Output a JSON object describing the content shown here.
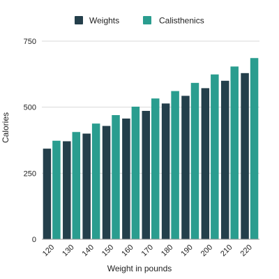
{
  "chart_data": {
    "type": "bar",
    "title": "",
    "xlabel": "Weight in pounds",
    "ylabel": "Calories",
    "categories": [
      "120",
      "130",
      "140",
      "150",
      "160",
      "170",
      "180",
      "190",
      "200",
      "210",
      "220"
    ],
    "series": [
      {
        "name": "Weights",
        "color": "#243f4b",
        "values": [
          343,
          371,
          400,
          429,
          457,
          486,
          514,
          543,
          572,
          600,
          629
        ]
      },
      {
        "name": "Calisthenics",
        "color": "#2a9d8f",
        "values": [
          373,
          406,
          438,
          470,
          502,
          533,
          561,
          592,
          624,
          654,
          686
        ]
      }
    ],
    "yticks": [
      "0",
      "250",
      "500",
      "750"
    ],
    "ylim": [
      0,
      750
    ],
    "grid": true,
    "legend": "top-center"
  }
}
